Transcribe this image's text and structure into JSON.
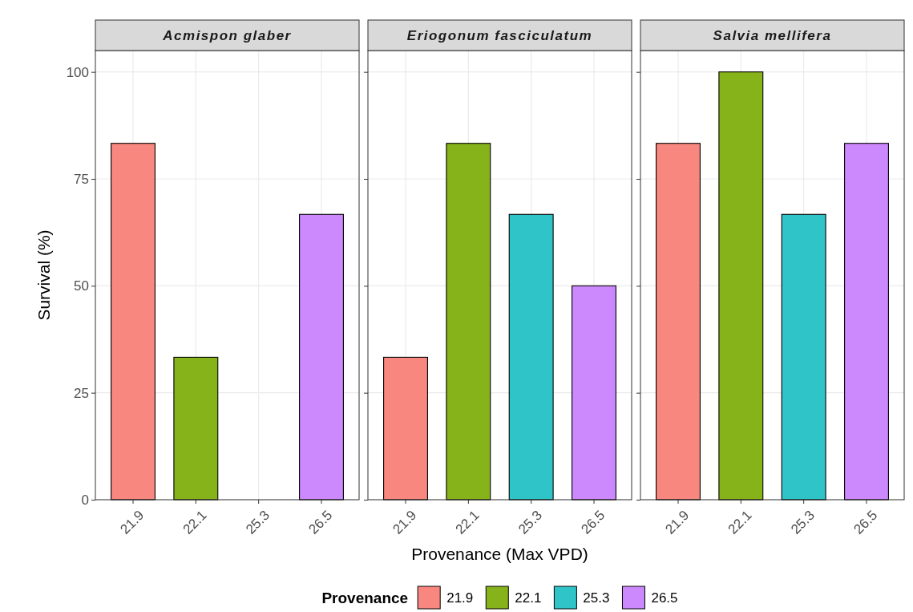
{
  "chart_data": [
    {
      "type": "bar",
      "title": "Acmispon glaber",
      "ylabel": "Survival (%)",
      "categories": [
        "21.9",
        "22.1",
        "25.3",
        "26.5"
      ],
      "series": [
        {
          "color": "#f8877f",
          "values": [
            83.3,
            null,
            null,
            null
          ]
        },
        {
          "color": "#86b21a",
          "values": [
            null,
            33.3,
            null,
            null
          ]
        },
        {
          "color": "#2ec4c8",
          "values": [
            null,
            null,
            0,
            null
          ]
        },
        {
          "color": "#cc88fd",
          "values": [
            null,
            null,
            null,
            66.7
          ]
        }
      ],
      "ylim": [
        0,
        105
      ],
      "yticks": [
        0,
        25,
        50,
        75,
        100
      ],
      "grid": true
    },
    {
      "type": "bar",
      "title": "Eriogonum fasciculatum",
      "xlabel": "Provenance (Max VPD)",
      "legend_title": "Provenance",
      "legend": "bottom",
      "categories": [
        "21.9",
        "22.1",
        "25.3",
        "26.5"
      ],
      "series": [
        {
          "name": "21.9",
          "color": "#f8877f",
          "values": [
            33.3,
            null,
            null,
            null
          ]
        },
        {
          "name": "22.1",
          "color": "#86b21a",
          "values": [
            null,
            83.3,
            null,
            null
          ]
        },
        {
          "name": "25.3",
          "color": "#2ec4c8",
          "values": [
            null,
            null,
            66.7,
            null
          ]
        },
        {
          "name": "26.5",
          "color": "#cc88fd",
          "values": [
            null,
            null,
            null,
            50
          ]
        }
      ],
      "ylim": [
        0,
        105
      ],
      "yticks": [
        0,
        25,
        50,
        75,
        100
      ],
      "grid": true,
      "tick_labels": "x"
    },
    {
      "type": "bar",
      "title": "Salvia mellifera",
      "categories": [
        "21.9",
        "22.1",
        "25.3",
        "26.5"
      ],
      "series": [
        {
          "color": "#f8877f",
          "values": [
            83.3,
            null,
            null,
            null
          ]
        },
        {
          "color": "#86b21a",
          "values": [
            null,
            100,
            null,
            null
          ]
        },
        {
          "color": "#2ec4c8",
          "values": [
            null,
            null,
            66.7,
            null
          ]
        },
        {
          "color": "#cc88fd",
          "values": [
            null,
            null,
            null,
            83.3
          ]
        }
      ],
      "ylim": [
        0,
        105
      ],
      "yticks": [
        0,
        25,
        50,
        75,
        100
      ],
      "grid": true,
      "tick_labels": "x"
    }
  ]
}
